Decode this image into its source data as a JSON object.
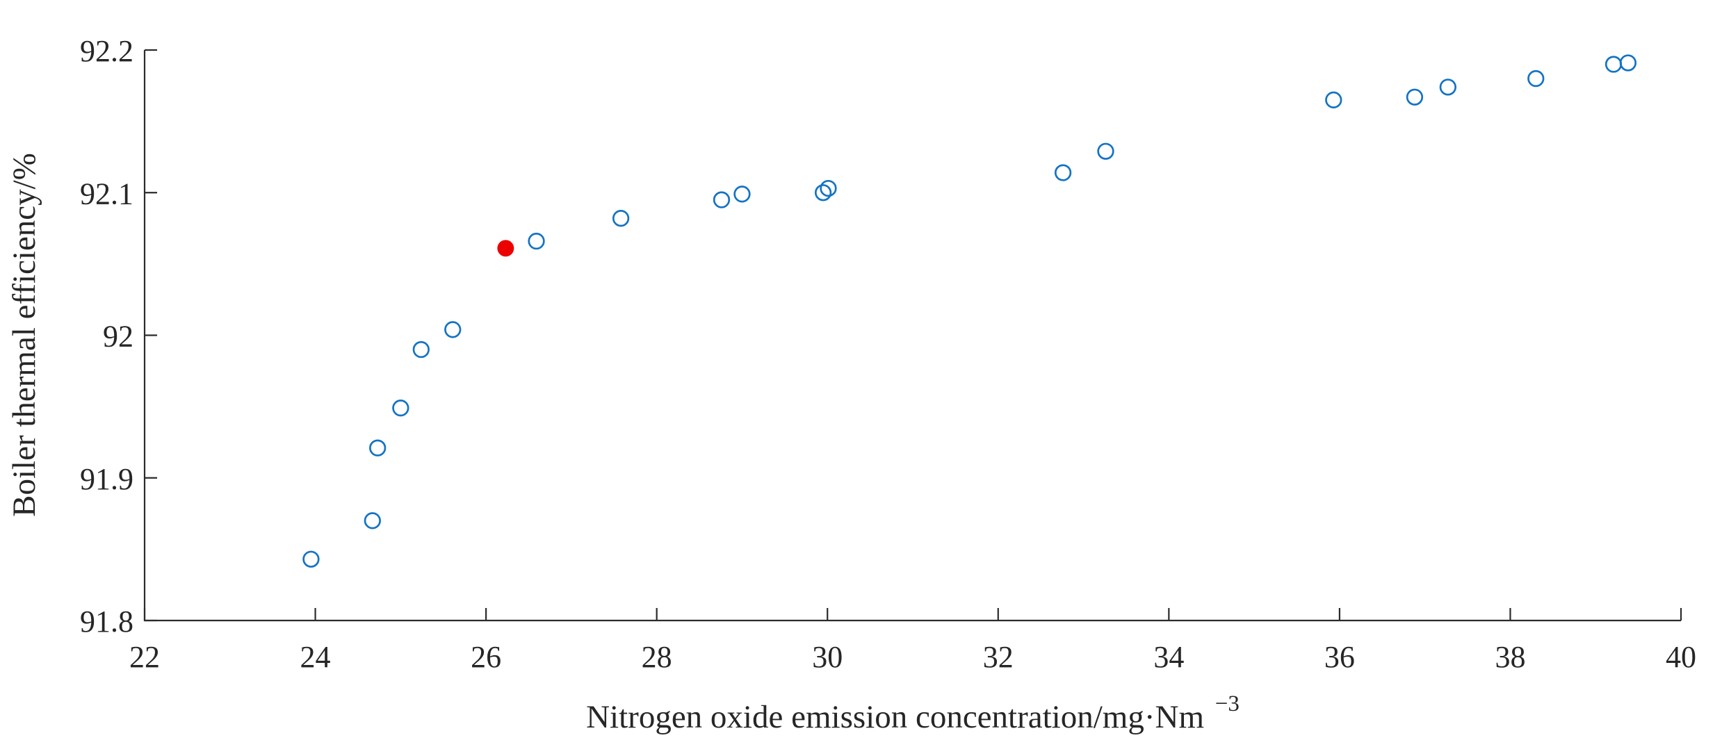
{
  "chart_data": {
    "type": "scatter",
    "title": "",
    "xlabel": "Nitrogen oxide emission concentration/mg·Nm⁻³",
    "xlabel_main": "Nitrogen oxide emission concentration/mg·Nm",
    "xlabel_sup": "−3",
    "ylabel": "Boiler thermal efficiency/%",
    "xlim": [
      22,
      40
    ],
    "ylim": [
      91.8,
      92.2
    ],
    "xticks": [
      22,
      24,
      26,
      28,
      30,
      32,
      34,
      36,
      38,
      40
    ],
    "xtick_labels": [
      "22",
      "24",
      "26",
      "28",
      "30",
      "32",
      "34",
      "36",
      "38",
      "40"
    ],
    "yticks": [
      91.8,
      91.9,
      92,
      92.1,
      92.2
    ],
    "ytick_labels": [
      "91.8",
      "91.9",
      "92",
      "92.1",
      "92.2"
    ],
    "grid": false,
    "legend": "none",
    "series": [
      {
        "name": "boiler-efficiency-points",
        "marker": "open-circle",
        "color": "#1473c4",
        "points": [
          [
            23.95,
            91.843
          ],
          [
            24.67,
            91.87
          ],
          [
            24.73,
            91.921
          ],
          [
            25.0,
            91.949
          ],
          [
            25.24,
            91.99
          ],
          [
            25.61,
            92.004
          ],
          [
            26.59,
            92.066
          ],
          [
            27.58,
            92.082
          ],
          [
            28.76,
            92.095
          ],
          [
            29.0,
            92.099
          ],
          [
            29.95,
            92.1
          ],
          [
            30.01,
            92.103
          ],
          [
            32.76,
            92.114
          ],
          [
            33.26,
            92.129
          ],
          [
            35.93,
            92.165
          ],
          [
            36.88,
            92.167
          ],
          [
            37.27,
            92.174
          ],
          [
            38.3,
            92.18
          ],
          [
            39.21,
            92.19
          ],
          [
            39.38,
            92.191
          ]
        ]
      },
      {
        "name": "highlighted-point",
        "marker": "filled-circle",
        "color": "#ed0000",
        "points": [
          [
            26.23,
            92.061
          ]
        ]
      }
    ],
    "colors": {
      "axis": "#2b2b2b",
      "text": "#262626",
      "background": "#ffffff"
    }
  }
}
